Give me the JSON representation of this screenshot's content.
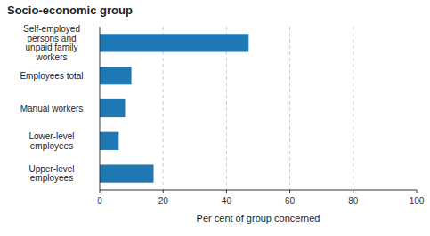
{
  "chart_data": {
    "type": "bar",
    "orientation": "horizontal",
    "title": "Socio-economic group",
    "xlabel": "Per cent of group concerned",
    "categories": [
      "Upper-level\nemployees",
      "Lower-level\nemployees",
      "Manual workers",
      "Employees total",
      "Self-employed\npersons and\nunpaid family\nworkers"
    ],
    "values": [
      17,
      6,
      8,
      10,
      47
    ],
    "color": "#1F77B4",
    "xlim": [
      0,
      100
    ],
    "xticks": [
      0,
      20,
      40,
      60,
      80,
      100
    ],
    "grid": true
  }
}
